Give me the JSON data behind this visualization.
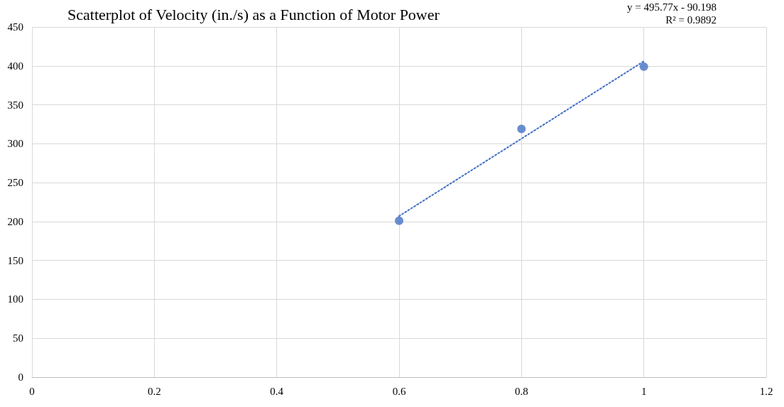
{
  "chart_data": {
    "type": "scatter",
    "title": "Scatterplot of Velocity (in./s) as a Function of Motor Power",
    "x": [
      0.6,
      0.8,
      1
    ],
    "series": [
      {
        "color": "#4472c4",
        "values": [
          201,
          319,
          399
        ],
        "marker": "circle"
      },
      {
        "type": "line",
        "color": "#4472c4",
        "x": [
          0.6,
          1
        ],
        "values": [
          207,
          406
        ],
        "line_style": "dotted",
        "marker": "none"
      }
    ],
    "annotations": [
      "y = 495.77x - 90.198",
      "R² = 0.9892"
    ],
    "xlim": [
      0,
      1.2
    ],
    "xticks": [
      0,
      0.2,
      0.4,
      0.6,
      0.8,
      1,
      1.2
    ],
    "ylim": [
      0,
      450
    ],
    "yticks": [
      0,
      50,
      100,
      150,
      200,
      250,
      300,
      350,
      400,
      450
    ],
    "grid": true
  }
}
